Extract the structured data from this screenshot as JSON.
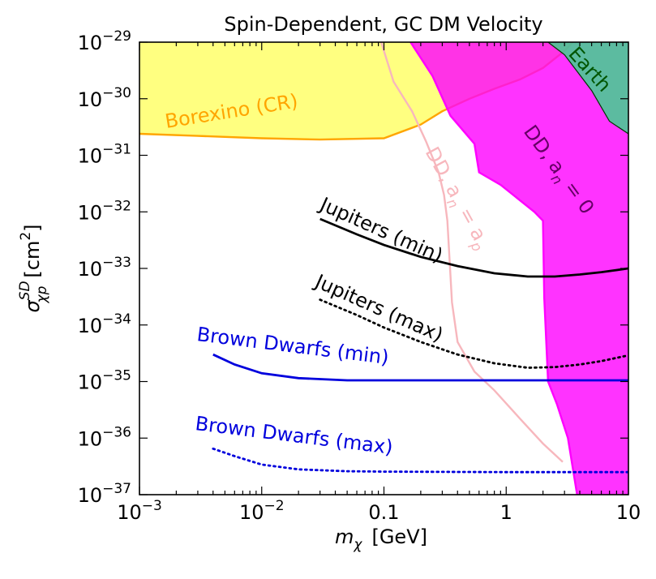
{
  "chart_data": {
    "type": "line",
    "title": "Spin-Dependent, GC DM Velocity",
    "xlabel": {
      "sym": "m",
      "sub": "χ",
      "unit": "[GeV]"
    },
    "ylabel": {
      "sym": "σ",
      "sup": "SD",
      "sub": "χp",
      "unit": "[cm",
      "unit_sup": "2",
      "unit_close": "]"
    },
    "xscale": "log",
    "yscale": "log",
    "xlim": [
      0.001,
      10
    ],
    "ylim": [
      1e-37,
      1e-29
    ],
    "grid": false,
    "legend": "none",
    "x_ticks": [
      {
        "value": 0.001,
        "base": "10",
        "exp": "−3"
      },
      {
        "value": 0.01,
        "base": "10",
        "exp": "−2"
      },
      {
        "value": 0.1,
        "base": "0.1",
        "exp": ""
      },
      {
        "value": 1,
        "base": "1",
        "exp": ""
      },
      {
        "value": 10,
        "base": "10",
        "exp": ""
      }
    ],
    "y_ticks": [
      {
        "value": 1e-29,
        "base": "10",
        "exp": "−29"
      },
      {
        "value": 1e-30,
        "base": "10",
        "exp": "−30"
      },
      {
        "value": 1e-31,
        "base": "10",
        "exp": "−31"
      },
      {
        "value": 1e-32,
        "base": "10",
        "exp": "−32"
      },
      {
        "value": 1e-33,
        "base": "10",
        "exp": "−33"
      },
      {
        "value": 1e-34,
        "base": "10",
        "exp": "−34"
      },
      {
        "value": 1e-35,
        "base": "10",
        "exp": "−35"
      },
      {
        "value": 1e-36,
        "base": "10",
        "exp": "−36"
      },
      {
        "value": 1e-37,
        "base": "10",
        "exp": "−37"
      }
    ],
    "regions": [
      {
        "label": "Borexino (CR)",
        "fill": "#ffff80",
        "stroke": "#ffa500",
        "boundary": [
          [
            0.001,
            2.4e-31
          ],
          [
            0.003,
            2.2e-31
          ],
          [
            0.01,
            2e-31
          ],
          [
            0.03,
            1.9e-31
          ],
          [
            0.1,
            2e-31
          ],
          [
            0.2,
            3.5e-31
          ],
          [
            0.3,
            6e-31
          ],
          [
            0.5,
            1e-30
          ],
          [
            0.8,
            1.5e-30
          ],
          [
            1.3,
            2.2e-30
          ],
          [
            2.0,
            3.5e-30
          ],
          [
            3.0,
            7e-30
          ],
          [
            3.5,
            1e-29
          ]
        ]
      },
      {
        "label": "DD, a_n = 0",
        "fill": "#ff00ff",
        "stroke": "#ff00ff",
        "boundary": [
          [
            0.165,
            1e-29
          ],
          [
            0.25,
            2.5e-30
          ],
          [
            0.35,
            5e-31
          ],
          [
            0.55,
            1.6e-31
          ],
          [
            0.6,
            5e-32
          ],
          [
            0.9,
            3e-32
          ],
          [
            1.7,
            1e-32
          ],
          [
            2.0,
            7e-33
          ],
          [
            2.05,
            3e-34
          ],
          [
            2.2,
            1e-35
          ],
          [
            2.6,
            4e-36
          ],
          [
            3.2,
            1e-36
          ],
          [
            3.8,
            1e-37
          ]
        ]
      },
      {
        "label": "Earth",
        "fill": "#33dd88",
        "stroke": "#003300",
        "boundary": [
          [
            2.2,
            1e-29
          ],
          [
            3.0,
            6e-30
          ],
          [
            5.0,
            1.4e-30
          ],
          [
            7.0,
            4e-31
          ],
          [
            10,
            2.4e-31
          ]
        ]
      }
    ],
    "series": [
      {
        "name": "DD, a_n = a_p",
        "color": "#f7b7bd",
        "style": "solid",
        "points": [
          [
            0.095,
            1e-29
          ],
          [
            0.12,
            2e-30
          ],
          [
            0.17,
            6e-31
          ],
          [
            0.22,
            1.8e-31
          ],
          [
            0.28,
            5e-32
          ],
          [
            0.31,
            2e-32
          ],
          [
            0.33,
            7e-33
          ],
          [
            0.36,
            2.5e-34
          ],
          [
            0.4,
            5e-35
          ],
          [
            0.55,
            1.5e-35
          ],
          [
            0.8,
            7e-36
          ],
          [
            1.3,
            2.2e-36
          ],
          [
            2.0,
            8e-37
          ],
          [
            2.9,
            3.8e-37
          ]
        ]
      },
      {
        "name": "Jupiters (min)",
        "color": "#000000",
        "style": "solid",
        "points": [
          [
            0.03,
            7.5e-33
          ],
          [
            0.06,
            4e-33
          ],
          [
            0.1,
            2.6e-33
          ],
          [
            0.2,
            1.6e-33
          ],
          [
            0.4,
            1.1e-33
          ],
          [
            0.8,
            8.2e-34
          ],
          [
            1.5,
            7.2e-34
          ],
          [
            2.5,
            7.2e-34
          ],
          [
            4.0,
            7.8e-34
          ],
          [
            6.0,
            8.6e-34
          ],
          [
            10,
            1e-33
          ]
        ]
      },
      {
        "name": "Jupiters (max)",
        "color": "#000000",
        "style": "dotted",
        "points": [
          [
            0.03,
            2.8e-34
          ],
          [
            0.06,
            1.5e-34
          ],
          [
            0.1,
            9e-35
          ],
          [
            0.2,
            5e-35
          ],
          [
            0.4,
            3e-35
          ],
          [
            0.8,
            2.1e-35
          ],
          [
            1.5,
            1.75e-35
          ],
          [
            2.5,
            1.8e-35
          ],
          [
            4.0,
            2e-35
          ],
          [
            6.0,
            2.3e-35
          ],
          [
            10,
            2.9e-35
          ]
        ]
      },
      {
        "name": "Brown Dwarfs (min)",
        "color": "#0000dd",
        "style": "solid",
        "points": [
          [
            0.004,
            3e-35
          ],
          [
            0.006,
            2e-35
          ],
          [
            0.01,
            1.4e-35
          ],
          [
            0.02,
            1.15e-35
          ],
          [
            0.05,
            1.05e-35
          ],
          [
            0.1,
            1.05e-35
          ],
          [
            1,
            1.05e-35
          ],
          [
            10,
            1.05e-35
          ]
        ]
      },
      {
        "name": "Brown Dwarfs (max)",
        "color": "#0000dd",
        "style": "dotted",
        "points": [
          [
            0.004,
            6.5e-37
          ],
          [
            0.006,
            4.8e-37
          ],
          [
            0.01,
            3.4e-37
          ],
          [
            0.02,
            2.8e-37
          ],
          [
            0.05,
            2.6e-37
          ],
          [
            0.1,
            2.55e-37
          ],
          [
            1,
            2.5e-37
          ],
          [
            10,
            2.5e-37
          ]
        ]
      }
    ],
    "annotations": [
      {
        "name": "Borexino (CR)",
        "color": "#ffa500"
      },
      {
        "name": "Earth",
        "color": "#005500",
        "prefix": "Earth"
      },
      {
        "name": "DD, a_n = 0",
        "color": "#660066",
        "text_a": "DD, a",
        "sub": "n",
        "text_b": " = 0"
      },
      {
        "name": "DD, a_n = a_p",
        "color": "#f7b7bd",
        "text_a": "DD, a",
        "sub": "n",
        "text_b": " = a",
        "sub2": "p"
      },
      {
        "name": "Jupiters (min)",
        "color": "#000000"
      },
      {
        "name": "Jupiters (max)",
        "color": "#000000"
      },
      {
        "name": "Brown Dwarfs (min)",
        "color": "#0000dd"
      },
      {
        "name": "Brown Dwarfs (max)",
        "color": "#0000dd"
      }
    ]
  }
}
